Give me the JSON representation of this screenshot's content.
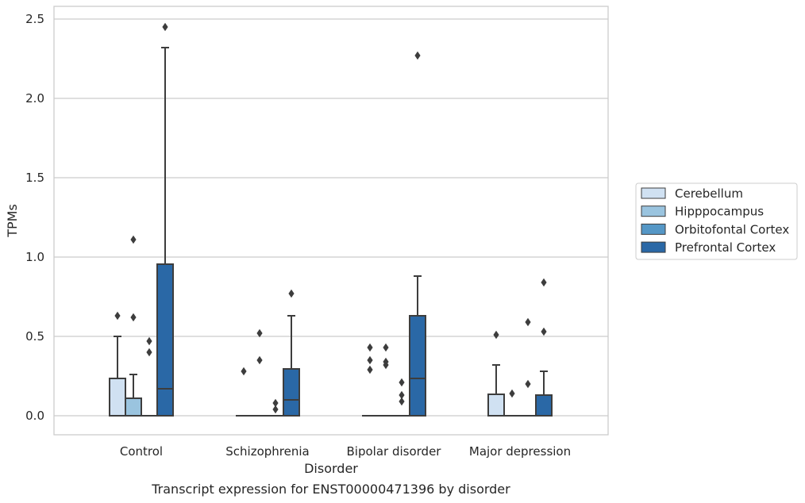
{
  "chart_data": {
    "type": "box",
    "caption": "Transcript expression for ENST00000471396 by disorder",
    "xlabel": "Disorder",
    "ylabel": "TPMs",
    "ylim": [
      -0.12,
      2.58
    ],
    "yticks": [
      "0.0",
      "0.5",
      "1.0",
      "1.5",
      "2.0",
      "2.5"
    ],
    "ytick_values": [
      0,
      0.5,
      1.0,
      1.5,
      2.0,
      2.5
    ],
    "grid": true,
    "legend_position": "right",
    "categories": [
      "Control",
      "Schizophrenia",
      "Bipolar disorder",
      "Major depression"
    ],
    "series": [
      {
        "name": "Cerebellum",
        "color": "#d0e1f2",
        "boxes": [
          {
            "q1": 0,
            "median": 0,
            "q3": 0.235,
            "whisker_low": 0,
            "whisker_high": 0.5,
            "outliers": [
              0.63
            ]
          },
          {
            "q1": 0,
            "median": 0,
            "q3": 0,
            "whisker_low": 0,
            "whisker_high": 0,
            "outliers": [
              0.28
            ]
          },
          {
            "q1": 0,
            "median": 0,
            "q3": 0,
            "whisker_low": 0,
            "whisker_high": 0,
            "outliers": [
              0.29,
              0.35,
              0.43
            ]
          },
          {
            "q1": 0,
            "median": 0,
            "q3": 0.135,
            "whisker_low": 0,
            "whisker_high": 0.32,
            "outliers": [
              0.51
            ]
          }
        ]
      },
      {
        "name": "Hipppocampus",
        "color": "#9ac4df",
        "boxes": [
          {
            "q1": 0,
            "median": 0,
            "q3": 0.11,
            "whisker_low": 0,
            "whisker_high": 0.26,
            "outliers": [
              0.62,
              1.11
            ]
          },
          {
            "q1": 0,
            "median": 0,
            "q3": 0,
            "whisker_low": 0,
            "whisker_high": 0,
            "outliers": [
              0.35,
              0.52
            ]
          },
          {
            "q1": 0,
            "median": 0,
            "q3": 0,
            "whisker_low": 0,
            "whisker_high": 0,
            "outliers": [
              0.32,
              0.34,
              0.43
            ]
          },
          {
            "q1": 0,
            "median": 0,
            "q3": 0,
            "whisker_low": 0,
            "whisker_high": 0,
            "outliers": [
              0.14
            ]
          }
        ]
      },
      {
        "name": "Orbitofontal Cortex",
        "color": "#5597c6",
        "boxes": [
          {
            "q1": 0,
            "median": 0,
            "q3": 0,
            "whisker_low": 0,
            "whisker_high": 0,
            "outliers": [
              0.4,
              0.47
            ]
          },
          {
            "q1": 0,
            "median": 0,
            "q3": 0,
            "whisker_low": 0,
            "whisker_high": 0,
            "outliers": [
              0.04,
              0.08
            ]
          },
          {
            "q1": 0,
            "median": 0,
            "q3": 0,
            "whisker_low": 0,
            "whisker_high": 0,
            "outliers": [
              0.09,
              0.13,
              0.21
            ]
          },
          {
            "q1": 0,
            "median": 0,
            "q3": 0,
            "whisker_low": 0,
            "whisker_high": 0,
            "outliers": [
              0.2,
              0.59
            ]
          }
        ]
      },
      {
        "name": "Prefrontal Cortex",
        "color": "#2a68a6",
        "boxes": [
          {
            "q1": 0,
            "median": 0.17,
            "q3": 0.955,
            "whisker_low": 0,
            "whisker_high": 2.32,
            "outliers": [
              2.45
            ]
          },
          {
            "q1": 0,
            "median": 0.1,
            "q3": 0.295,
            "whisker_low": 0,
            "whisker_high": 0.63,
            "outliers": [
              0.77
            ]
          },
          {
            "q1": 0,
            "median": 0.235,
            "q3": 0.63,
            "whisker_low": 0,
            "whisker_high": 0.88,
            "outliers": [
              2.27
            ]
          },
          {
            "q1": 0,
            "median": 0,
            "q3": 0.13,
            "whisker_low": 0,
            "whisker_high": 0.28,
            "outliers": [
              0.53,
              0.84
            ]
          }
        ]
      }
    ]
  }
}
